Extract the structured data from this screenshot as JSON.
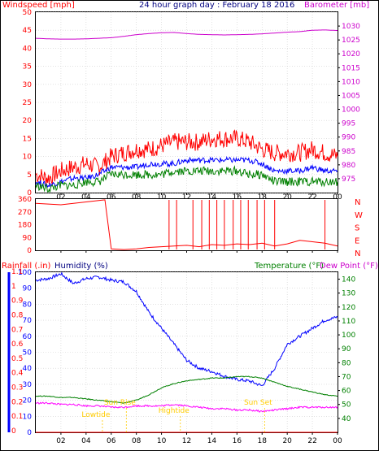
{
  "header": {
    "title": "24 hour graph day : February 18 2016",
    "left_label": "Windspeed [mph]",
    "right_label": "Barometer [mb]"
  },
  "humidity_header": {
    "rain_label": "Rainfall (.in)",
    "humidity_label": "Humidity (%)",
    "temp_label": "Temperature (°F)",
    "dew_label": "Dew Point (°F)"
  },
  "colors": {
    "border": "#000000",
    "grid": "#cfcfcf",
    "wind_gust": "#ff0000",
    "wind_avg": "#0000ff",
    "wind_speed": "#008000",
    "barometer": "#cc00cc",
    "direction": "#ff0000",
    "humidity": "#0000ff",
    "temperature": "#008000",
    "dewpoint": "#ff00ff",
    "rain": "#ff0000",
    "annotation": "#ffcc00"
  },
  "chart_data": [
    {
      "type": "line",
      "name": "wind-barometer",
      "xlim": [
        0,
        24
      ],
      "x_ticks": [
        "02",
        "04",
        "06",
        "08",
        "10",
        "12",
        "14",
        "16",
        "18",
        "20",
        "22",
        "00"
      ],
      "ylim": [
        0,
        50
      ],
      "y_ticks": [
        0,
        5,
        10,
        15,
        20,
        25,
        30,
        35,
        40,
        45,
        50
      ],
      "y2lim": [
        970,
        1035
      ],
      "y2_ticks": [
        975,
        980,
        985,
        990,
        995,
        1000,
        1005,
        1010,
        1015,
        1020,
        1025,
        1030
      ],
      "series": [
        {
          "key": "gust",
          "color": "#ff0000",
          "x": [
            0,
            1,
            2,
            3,
            4,
            5,
            6,
            7,
            8,
            9,
            10,
            11,
            12,
            13,
            14,
            15,
            16,
            17,
            18,
            19,
            20,
            21,
            22,
            23,
            24
          ],
          "values": [
            5,
            4,
            6,
            7,
            8,
            7,
            10,
            11,
            12,
            12,
            13,
            14,
            14,
            14,
            15,
            15,
            15,
            14,
            12,
            11,
            11,
            11,
            12,
            11,
            10
          ]
        },
        {
          "key": "average",
          "color": "#0000ff",
          "x": [
            0,
            1,
            2,
            3,
            4,
            5,
            6,
            7,
            8,
            9,
            10,
            11,
            12,
            13,
            14,
            15,
            16,
            17,
            18,
            19,
            20,
            21,
            22,
            23,
            24
          ],
          "values": [
            3,
            2,
            3,
            4,
            4,
            5,
            7,
            7,
            7,
            8,
            8,
            8,
            9,
            9,
            9,
            9,
            9,
            9,
            8,
            6,
            6,
            6,
            7,
            6,
            6
          ]
        },
        {
          "key": "speed",
          "color": "#008000",
          "x": [
            0,
            1,
            2,
            3,
            4,
            5,
            6,
            7,
            8,
            9,
            10,
            11,
            12,
            13,
            14,
            15,
            16,
            17,
            18,
            19,
            20,
            21,
            22,
            23,
            24
          ],
          "values": [
            2,
            1,
            2,
            2,
            3,
            3,
            5,
            5,
            5,
            5,
            5,
            6,
            6,
            6,
            6,
            6,
            6,
            5,
            5,
            3,
            3,
            3,
            3,
            3,
            3
          ]
        },
        {
          "key": "barometer",
          "color": "#cc00cc",
          "axis": "right",
          "x": [
            0,
            1,
            2,
            3,
            4,
            5,
            6,
            7,
            8,
            9,
            10,
            11,
            12,
            13,
            14,
            15,
            16,
            17,
            18,
            19,
            20,
            21,
            22,
            23,
            24
          ],
          "values": [
            1025.6,
            1025.4,
            1025.3,
            1025.3,
            1025.4,
            1025.6,
            1025.8,
            1026.3,
            1026.9,
            1027.3,
            1027.6,
            1027.7,
            1027.3,
            1027,
            1026.9,
            1026.8,
            1026.9,
            1027,
            1027.2,
            1027.5,
            1027.8,
            1028,
            1028.5,
            1028.6,
            1028.4
          ]
        }
      ]
    },
    {
      "type": "scatter",
      "name": "wind-direction",
      "xlim": [
        0,
        24
      ],
      "ylim": [
        0,
        360
      ],
      "y_ticks": [
        0,
        90,
        180,
        270,
        360
      ],
      "compass_labels": [
        "N",
        "W",
        "S",
        "E",
        "N"
      ],
      "series": [
        {
          "key": "direction",
          "color": "#ff0000",
          "x": [
            0,
            1,
            2,
            3,
            4,
            4.5,
            5,
            5.5,
            6,
            7,
            8,
            9,
            10,
            11,
            12,
            13,
            14,
            15,
            16,
            17,
            18,
            19,
            20,
            21,
            22,
            23,
            24
          ],
          "values": [
            330,
            325,
            320,
            330,
            340,
            345,
            350,
            355,
            10,
            5,
            10,
            20,
            25,
            30,
            35,
            25,
            40,
            35,
            45,
            40,
            50,
            30,
            45,
            70,
            60,
            50,
            30
          ]
        }
      ]
    },
    {
      "type": "line",
      "name": "humidity-temperature",
      "xlim": [
        0,
        24
      ],
      "ylim": [
        0,
        100
      ],
      "y_ticks": [
        0,
        10,
        20,
        30,
        40,
        50,
        60,
        70,
        80,
        90,
        100
      ],
      "rain_ticks": [
        "0",
        "0.1",
        "0.2",
        "0.3",
        "0.4",
        "0.5",
        "0.6",
        "0.7",
        "0.8",
        "0.9",
        "1",
        "1.1"
      ],
      "y2lim": [
        30,
        145
      ],
      "y2_ticks": [
        40,
        50,
        60,
        70,
        80,
        90,
        100,
        110,
        120,
        130,
        140
      ],
      "annotations": [
        "Lowtide",
        "Sun Rise",
        "Hightide",
        "Sun Set"
      ],
      "series": [
        {
          "key": "humidity",
          "color": "#0000ff",
          "x": [
            0,
            1,
            2,
            3,
            4,
            5,
            6,
            7,
            8,
            9,
            10,
            11,
            12,
            13,
            14,
            15,
            16,
            17,
            18,
            19,
            20,
            21,
            22,
            23,
            24
          ],
          "values": [
            95,
            96,
            99,
            93,
            96,
            97,
            95,
            94,
            88,
            75,
            65,
            55,
            45,
            40,
            38,
            35,
            33,
            32,
            29,
            40,
            55,
            60,
            65,
            70,
            72
          ]
        },
        {
          "key": "temperature",
          "color": "#008000",
          "axis": "right",
          "x": [
            0,
            1,
            2,
            3,
            4,
            5,
            6,
            7,
            8,
            9,
            10,
            11,
            12,
            13,
            14,
            15,
            16,
            17,
            18,
            19,
            20,
            21,
            22,
            23,
            24
          ],
          "values": [
            56,
            56,
            55,
            55,
            54,
            53,
            52,
            51,
            53,
            57,
            62,
            65,
            67,
            68,
            69,
            69,
            70,
            70,
            69,
            66,
            63,
            61,
            59,
            57,
            56
          ]
        },
        {
          "key": "dewpoint",
          "color": "#ff00ff",
          "axis": "right",
          "x": [
            0,
            1,
            2,
            3,
            4,
            5,
            6,
            7,
            8,
            9,
            10,
            11,
            12,
            13,
            14,
            15,
            16,
            17,
            18,
            19,
            20,
            21,
            22,
            23,
            24
          ],
          "values": [
            51,
            51,
            50,
            50,
            49,
            49,
            48,
            48,
            49,
            49,
            49,
            50,
            49,
            48,
            47,
            47,
            46,
            46,
            45,
            46,
            47,
            48,
            48,
            48,
            48
          ]
        },
        {
          "key": "rain",
          "color": "#ff0000",
          "x": [
            0,
            24
          ],
          "values": [
            0,
            0
          ]
        }
      ]
    }
  ]
}
